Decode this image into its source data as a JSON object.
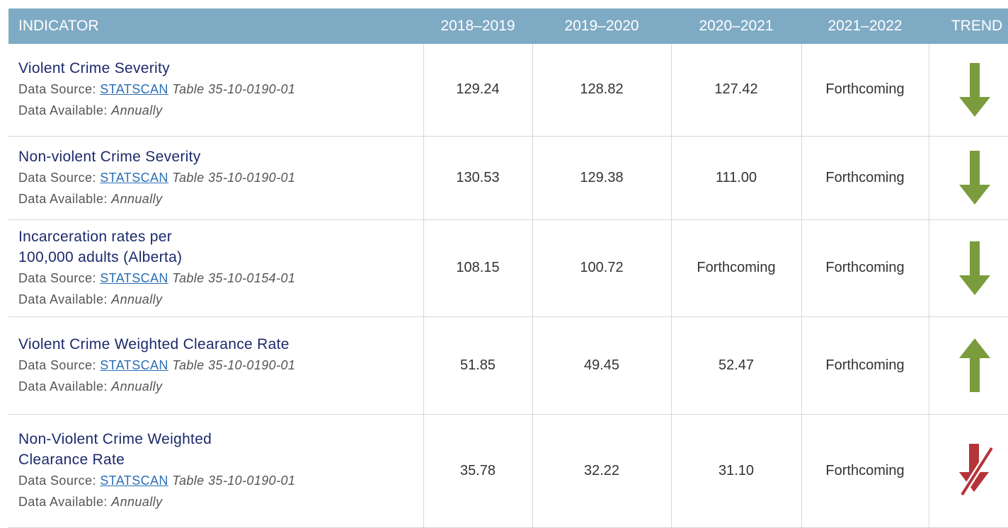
{
  "table": {
    "header": [
      "INDICATOR",
      "2018–2019",
      "2019–2020",
      "2020–2021",
      "2021–2022",
      "TREND"
    ],
    "rows": [
      {
        "indicator": [
          "Violent Crime Severity"
        ],
        "source_label": "Data Source:",
        "source_link": "STATSCAN",
        "source_table": "Table 35-10-0190-01",
        "availability_label": "Data Available:",
        "availability": "Annually",
        "values": [
          "129.24",
          "128.82",
          "127.42",
          "Forthcoming"
        ]
      },
      {
        "indicator": [
          "Non-violent Crime Severity"
        ],
        "source_label": "Data Source:",
        "source_link": "STATSCAN",
        "source_table": "Table 35-10-0190-01",
        "availability_label": "Data Available:",
        "availability": "Annually",
        "values": [
          "130.53",
          "129.38",
          "111.00",
          "Forthcoming"
        ]
      },
      {
        "indicator": [
          "Incarceration rates per",
          "100,000 adults (Alberta)"
        ],
        "source_label": "Data Source:",
        "source_link": "STATSCAN",
        "source_table": "Table 35-10-0154-01",
        "availability_label": "Data Available:",
        "availability": "Annually",
        "values": [
          "108.15",
          "100.72",
          "Forthcoming",
          "Forthcoming"
        ]
      },
      {
        "indicator": [
          "Violent Crime Weighted Clearance Rate"
        ],
        "source_label": "Data Source:",
        "source_link": "STATSCAN",
        "source_table": "Table 35-10-0190-01",
        "availability_label": "Data Available:",
        "availability": "Annually",
        "values": [
          "51.85",
          "49.45",
          "52.47",
          "Forthcoming"
        ]
      },
      {
        "indicator": [
          "Non-Violent Crime Weighted",
          "Clearance Rate"
        ],
        "source_label": "Data Source:",
        "source_link": "STATSCAN",
        "source_table": "Table 35-10-0190-01",
        "availability_label": "Data Available:",
        "availability": "Annually",
        "values": [
          "35.78",
          "32.22",
          "31.10",
          "Forthcoming"
        ]
      }
    ]
  }
}
